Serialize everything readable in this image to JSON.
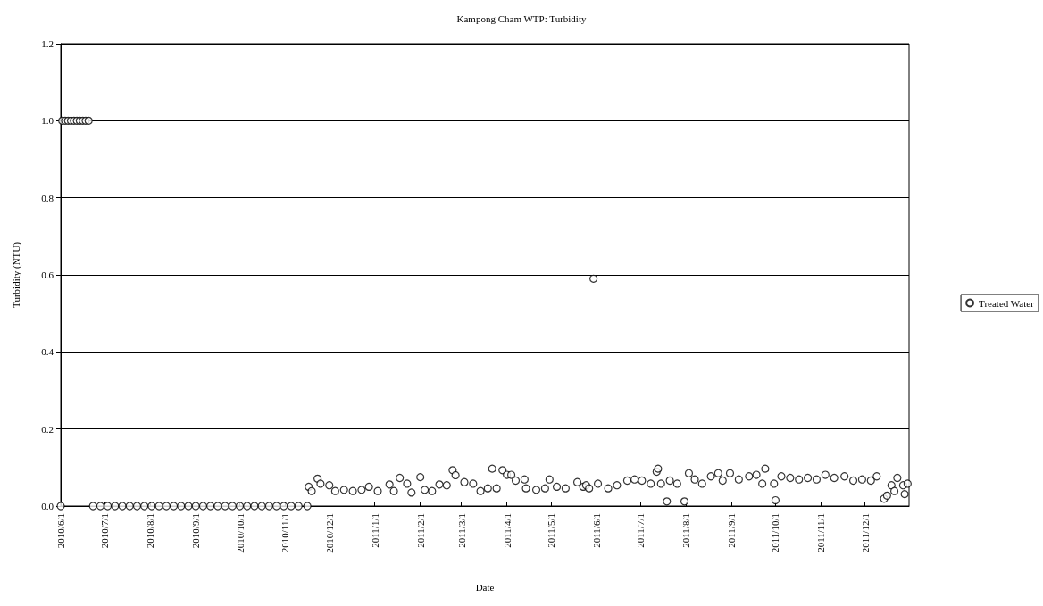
{
  "chart_data": {
    "type": "scatter",
    "title": "Kampong Cham WTP: Turbidity",
    "xlabel": "Date",
    "ylabel": "Turbidity (NTU)",
    "xlim": [
      "2010-06-01",
      "2011-12-31"
    ],
    "xticks": [
      {
        "value": "2010-06-01",
        "label": "2010/6/1"
      },
      {
        "value": "2010-07-01",
        "label": "2010/7/1"
      },
      {
        "value": "2010-08-01",
        "label": "2010/8/1"
      },
      {
        "value": "2010-09-01",
        "label": "2010/9/1"
      },
      {
        "value": "2010-10-01",
        "label": "2010/10/1"
      },
      {
        "value": "2010-11-01",
        "label": "2010/11/1"
      },
      {
        "value": "2010-12-01",
        "label": "2010/12/1"
      },
      {
        "value": "2011-01-01",
        "label": "2011/1/1"
      },
      {
        "value": "2011-02-01",
        "label": "2011/2/1"
      },
      {
        "value": "2011-03-01",
        "label": "2011/3/1"
      },
      {
        "value": "2011-04-01",
        "label": "2011/4/1"
      },
      {
        "value": "2011-05-01",
        "label": "2011/5/1"
      },
      {
        "value": "2011-06-01",
        "label": "2011/6/1"
      },
      {
        "value": "2011-07-01",
        "label": "2011/7/1"
      },
      {
        "value": "2011-08-01",
        "label": "2011/8/1"
      },
      {
        "value": "2011-09-01",
        "label": "2011/9/1"
      },
      {
        "value": "2011-10-01",
        "label": "2011/10/1"
      },
      {
        "value": "2011-11-01",
        "label": "2011/11/1"
      },
      {
        "value": "2011-12-01",
        "label": "2011/12/1"
      }
    ],
    "ylim": [
      0,
      1.2
    ],
    "yticks": [
      {
        "value": 0,
        "label": "0.0"
      },
      {
        "value": 0.2,
        "label": "0.2"
      },
      {
        "value": 0.4,
        "label": "0.4"
      },
      {
        "value": 0.6,
        "label": "0.6"
      },
      {
        "value": 0.8,
        "label": "0.8"
      },
      {
        "value": 1,
        "label": "1.0"
      },
      {
        "value": 1.2,
        "label": "1.2"
      }
    ],
    "grid": "y",
    "legend": "right",
    "marker": "circle",
    "series": [
      {
        "name": "Treated Water",
        "color": "#000000",
        "x": [
          "2010-06-01",
          "2010-06-02",
          "2010-06-04",
          "2010-06-06",
          "2010-06-08",
          "2010-06-10",
          "2010-06-12",
          "2010-06-14",
          "2010-06-16",
          "2010-06-18",
          "2010-06-20",
          "2010-06-23",
          "2010-06-28",
          "2010-07-03",
          "2010-07-08",
          "2010-07-13",
          "2010-07-18",
          "2010-07-23",
          "2010-07-28",
          "2010-08-02",
          "2010-08-07",
          "2010-08-12",
          "2010-08-17",
          "2010-08-22",
          "2010-08-27",
          "2010-09-01",
          "2010-09-06",
          "2010-09-11",
          "2010-09-16",
          "2010-09-21",
          "2010-09-26",
          "2010-10-01",
          "2010-10-06",
          "2010-10-11",
          "2010-10-16",
          "2010-10-21",
          "2010-10-26",
          "2010-10-31",
          "2010-11-05",
          "2010-11-10",
          "2010-11-16",
          "2010-11-17",
          "2010-11-19",
          "2010-11-23",
          "2010-11-25",
          "2010-12-01",
          "2010-12-05",
          "2010-12-11",
          "2010-12-17",
          "2010-12-23",
          "2010-12-28",
          "2011-01-03",
          "2011-01-11",
          "2011-01-14",
          "2011-01-18",
          "2011-01-23",
          "2011-01-26",
          "2011-02-01",
          "2011-02-04",
          "2011-02-09",
          "2011-02-14",
          "2011-02-19",
          "2011-02-23",
          "2011-02-25",
          "2011-03-03",
          "2011-03-09",
          "2011-03-14",
          "2011-03-19",
          "2011-03-22",
          "2011-03-25",
          "2011-03-29",
          "2011-04-01",
          "2011-04-04",
          "2011-04-07",
          "2011-04-13",
          "2011-04-14",
          "2011-04-21",
          "2011-04-27",
          "2011-04-30",
          "2011-05-05",
          "2011-05-11",
          "2011-05-19",
          "2011-05-23",
          "2011-05-25",
          "2011-05-27",
          "2011-05-30",
          "2011-06-02",
          "2011-06-09",
          "2011-06-15",
          "2011-06-22",
          "2011-06-27",
          "2011-07-02",
          "2011-07-08",
          "2011-07-12",
          "2011-07-13",
          "2011-07-15",
          "2011-07-19",
          "2011-07-21",
          "2011-07-26",
          "2011-07-31",
          "2011-08-03",
          "2011-08-07",
          "2011-08-12",
          "2011-08-18",
          "2011-08-23",
          "2011-08-26",
          "2011-08-31",
          "2011-09-06",
          "2011-09-13",
          "2011-09-18",
          "2011-09-22",
          "2011-09-24",
          "2011-09-30",
          "2011-10-01",
          "2011-10-05",
          "2011-10-11",
          "2011-10-17",
          "2011-10-23",
          "2011-10-29",
          "2011-11-04",
          "2011-11-10",
          "2011-11-17",
          "2011-11-23",
          "2011-11-29",
          "2011-12-05",
          "2011-12-09",
          "2011-12-14",
          "2011-12-16",
          "2011-12-19",
          "2011-12-21",
          "2011-12-23",
          "2011-12-27",
          "2011-12-28",
          "2011-12-30"
        ],
        "values": [
          0,
          1,
          1,
          1,
          1,
          1,
          1,
          1,
          1,
          1,
          1,
          0,
          0,
          0,
          0,
          0,
          0,
          0,
          0,
          0,
          0,
          0,
          0,
          0,
          0,
          0,
          0,
          0,
          0,
          0,
          0,
          0,
          0,
          0,
          0,
          0,
          0,
          0,
          0,
          0,
          0,
          0.05,
          0.039,
          0.071,
          0.058,
          0.054,
          0.039,
          0.042,
          0.039,
          0.042,
          0.05,
          0.039,
          0.056,
          0.039,
          0.073,
          0.058,
          0.035,
          0.075,
          0.042,
          0.039,
          0.056,
          0.054,
          0.093,
          0.08,
          0.062,
          0.058,
          0.039,
          0.046,
          0.097,
          0.046,
          0.093,
          0.081,
          0.081,
          0.066,
          0.069,
          0.046,
          0.042,
          0.046,
          0.069,
          0.05,
          0.046,
          0.062,
          0.05,
          0.054,
          0.046,
          0.59,
          0.058,
          0.046,
          0.054,
          0.066,
          0.069,
          0.066,
          0.058,
          0.089,
          0.097,
          0.058,
          0.012,
          0.066,
          0.058,
          0.012,
          0.085,
          0.069,
          0.058,
          0.077,
          0.085,
          0.066,
          0.085,
          0.069,
          0.077,
          0.081,
          0.058,
          0.097,
          0.058,
          0.015,
          0.077,
          0.073,
          0.069,
          0.073,
          0.069,
          0.081,
          0.073,
          0.077,
          0.066,
          0.069,
          0.066,
          0.077,
          0.019,
          0.027,
          0.054,
          0.039,
          0.073,
          0.054,
          0.031,
          0.058
        ]
      }
    ]
  }
}
